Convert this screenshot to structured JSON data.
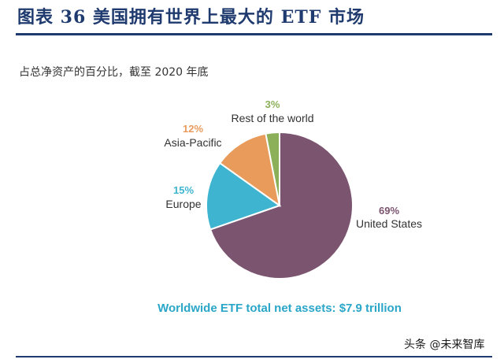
{
  "figure": {
    "title": "图表 36  美国拥有世界上最大的 ETF 市场",
    "watermark": "头条 @未来智库"
  },
  "chart_data": {
    "type": "pie",
    "title": "占总净资产的百分比，截至 2020 年底",
    "annotation": "Worldwide ETF total net assets: $7.9 trillion",
    "slices": [
      {
        "label": "United States",
        "value": 69,
        "pct_label": "69%",
        "color": "#7b5470",
        "label_color": "#7b5470"
      },
      {
        "label": "Europe",
        "value": 15,
        "pct_label": "15%",
        "color": "#3fb4d0",
        "label_color": "#3fb4d0"
      },
      {
        "label": "Asia-Pacific",
        "value": 12,
        "pct_label": "12%",
        "color": "#e99b5c",
        "label_color": "#e99b5c"
      },
      {
        "label": "Rest of the world",
        "value": 3,
        "pct_label": "3%",
        "color": "#8cb05a",
        "label_color": "#8cb05a"
      }
    ]
  }
}
